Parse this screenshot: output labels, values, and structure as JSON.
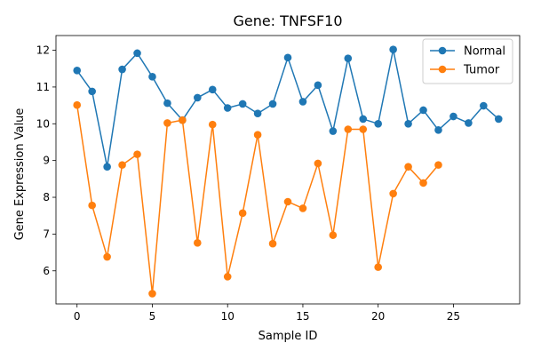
{
  "chart_data": {
    "type": "line",
    "title": "Gene: TNFSF10",
    "xlabel": "Sample ID",
    "ylabel": "Gene Expression Value",
    "xlim": [
      -1.4,
      29.4
    ],
    "ylim": [
      5.1,
      12.4
    ],
    "xticks": [
      0,
      5,
      10,
      15,
      20,
      25
    ],
    "yticks": [
      6,
      7,
      8,
      9,
      10,
      11,
      12
    ],
    "grid": false,
    "legend_position": "top-right",
    "series": [
      {
        "name": "Normal",
        "color": "#1f77b4",
        "marker": "circle",
        "x": [
          0,
          1,
          2,
          3,
          4,
          5,
          6,
          7,
          8,
          9,
          10,
          11,
          12,
          13,
          14,
          15,
          16,
          17,
          18,
          19,
          20,
          21,
          22,
          23,
          24,
          25,
          26,
          27,
          28
        ],
        "values": [
          11.45,
          10.88,
          8.83,
          11.48,
          11.92,
          11.28,
          10.56,
          10.1,
          10.71,
          10.93,
          10.43,
          10.54,
          10.28,
          10.54,
          11.8,
          10.6,
          11.05,
          9.8,
          11.78,
          10.13,
          10.0,
          12.02,
          10.0,
          10.37,
          9.83,
          10.2,
          10.02,
          10.49,
          10.13
        ]
      },
      {
        "name": "Tumor",
        "color": "#ff7f0e",
        "marker": "circle",
        "x": [
          0,
          1,
          2,
          3,
          4,
          5,
          6,
          7,
          8,
          9,
          10,
          11,
          12,
          13,
          14,
          15,
          16,
          17,
          18,
          19,
          20,
          21,
          22,
          23,
          24
        ],
        "values": [
          10.51,
          7.78,
          6.38,
          8.88,
          9.17,
          5.38,
          10.02,
          10.1,
          6.76,
          9.98,
          5.84,
          7.57,
          9.7,
          6.74,
          7.88,
          7.7,
          8.92,
          6.97,
          9.85,
          9.85,
          6.1,
          8.1,
          8.83,
          8.39,
          8.88
        ]
      }
    ]
  }
}
